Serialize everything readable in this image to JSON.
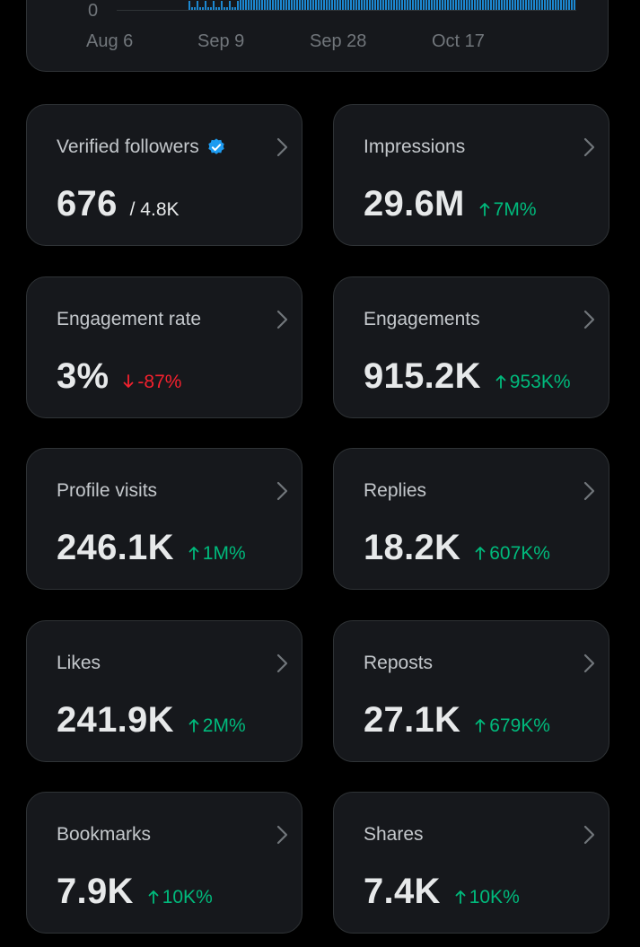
{
  "chart": {
    "y_zero_label": "0",
    "x_ticks": [
      "Aug 6",
      "Sep 9",
      "Sep 28",
      "Oct 17"
    ],
    "bar_color": "#1d9bf0"
  },
  "colors": {
    "positive": "#00ba7c",
    "negative": "#f4212e",
    "verified": "#1d9bf0"
  },
  "stats": [
    {
      "label": "Verified followers",
      "value": "676",
      "sub": "/ 4.8K",
      "verified": true,
      "delta": "",
      "direction": ""
    },
    {
      "label": "Impressions",
      "value": "29.6M",
      "sub": "",
      "verified": false,
      "delta": "7M%",
      "direction": "up"
    },
    {
      "label": "Engagement rate",
      "value": "3%",
      "sub": "",
      "verified": false,
      "delta": "-87%",
      "direction": "down"
    },
    {
      "label": "Engagements",
      "value": "915.2K",
      "sub": "",
      "verified": false,
      "delta": "953K%",
      "direction": "up"
    },
    {
      "label": "Profile visits",
      "value": "246.1K",
      "sub": "",
      "verified": false,
      "delta": "1M%",
      "direction": "up"
    },
    {
      "label": "Replies",
      "value": "18.2K",
      "sub": "",
      "verified": false,
      "delta": "607K%",
      "direction": "up"
    },
    {
      "label": "Likes",
      "value": "241.9K",
      "sub": "",
      "verified": false,
      "delta": "2M%",
      "direction": "up"
    },
    {
      "label": "Reposts",
      "value": "27.1K",
      "sub": "",
      "verified": false,
      "delta": "679K%",
      "direction": "up"
    },
    {
      "label": "Bookmarks",
      "value": "7.9K",
      "sub": "",
      "verified": false,
      "delta": "10K%",
      "direction": "up"
    },
    {
      "label": "Shares",
      "value": "7.4K",
      "sub": "",
      "verified": false,
      "delta": "10K%",
      "direction": "up"
    }
  ]
}
